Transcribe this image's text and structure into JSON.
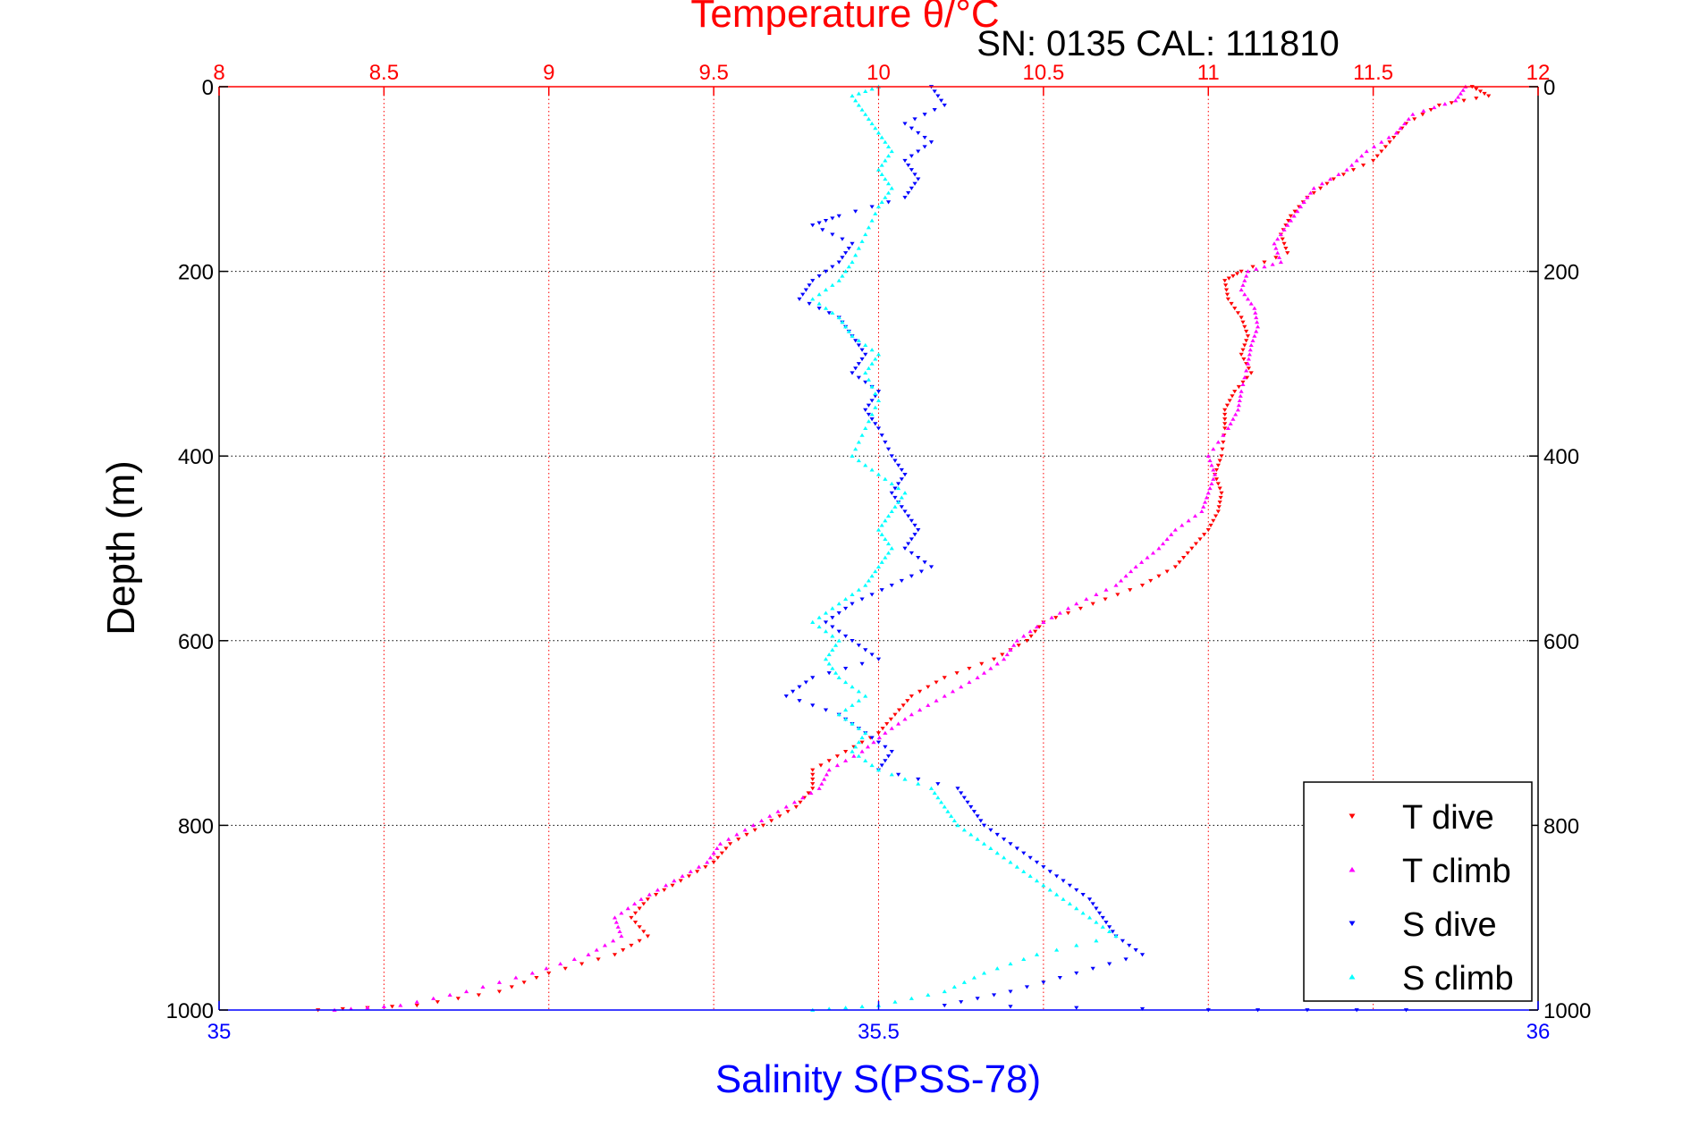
{
  "chart_data": {
    "type": "scatter",
    "title_top": "Temperature θ/°C",
    "annotation": "SN: 0135  CAL: 111810",
    "xlabel_bottom": "Salinity S(PSS-78)",
    "ylabel": "Depth (m)",
    "temperature_axis": {
      "lim": [
        8,
        12
      ],
      "ticks": [
        "8",
        "8.5",
        "9",
        "9.5",
        "10",
        "10.5",
        "11",
        "11.5",
        "12"
      ],
      "color": "#ff0000"
    },
    "salinity_axis": {
      "lim": [
        35,
        36
      ],
      "ticks": [
        "35",
        "35.5",
        "36"
      ],
      "color": "#0000ff"
    },
    "depth_axis": {
      "lim": [
        0,
        1000
      ],
      "reversed": true,
      "ticks": [
        "0",
        "200",
        "400",
        "600",
        "800",
        "1000"
      ]
    },
    "grid": true,
    "legend_position": "bottom-right",
    "series": [
      {
        "name": "T dive",
        "axis": "temperature",
        "color": "#ff0000",
        "marker": "triangle-down",
        "points": [
          [
            11.8,
            0
          ],
          [
            11.85,
            10
          ],
          [
            11.7,
            20
          ],
          [
            11.6,
            40
          ],
          [
            11.55,
            60
          ],
          [
            11.5,
            80
          ],
          [
            11.38,
            100
          ],
          [
            11.3,
            120
          ],
          [
            11.25,
            140
          ],
          [
            11.22,
            160
          ],
          [
            11.24,
            180
          ],
          [
            11.1,
            200
          ],
          [
            11.05,
            210
          ],
          [
            11.06,
            230
          ],
          [
            11.1,
            250
          ],
          [
            11.12,
            270
          ],
          [
            11.1,
            290
          ],
          [
            11.13,
            310
          ],
          [
            11.08,
            330
          ],
          [
            11.05,
            350
          ],
          [
            11.05,
            370
          ],
          [
            11.04,
            400
          ],
          [
            11.02,
            420
          ],
          [
            11.04,
            440
          ],
          [
            11.03,
            460
          ],
          [
            11.0,
            480
          ],
          [
            10.95,
            500
          ],
          [
            10.9,
            520
          ],
          [
            10.8,
            540
          ],
          [
            10.65,
            560
          ],
          [
            10.5,
            580
          ],
          [
            10.45,
            600
          ],
          [
            10.35,
            620
          ],
          [
            10.2,
            640
          ],
          [
            10.1,
            660
          ],
          [
            10.05,
            680
          ],
          [
            10.0,
            700
          ],
          [
            9.9,
            720
          ],
          [
            9.8,
            740
          ],
          [
            9.8,
            760
          ],
          [
            9.75,
            780
          ],
          [
            9.65,
            800
          ],
          [
            9.55,
            820
          ],
          [
            9.5,
            840
          ],
          [
            9.4,
            860
          ],
          [
            9.3,
            880
          ],
          [
            9.25,
            900
          ],
          [
            9.3,
            920
          ],
          [
            9.2,
            940
          ],
          [
            9.0,
            960
          ],
          [
            8.85,
            980
          ],
          [
            8.6,
            995
          ],
          [
            8.3,
            1000
          ]
        ]
      },
      {
        "name": "T climb",
        "axis": "temperature",
        "color": "#ff00ff",
        "marker": "triangle-up",
        "points": [
          [
            11.78,
            0
          ],
          [
            11.75,
            15
          ],
          [
            11.62,
            30
          ],
          [
            11.57,
            50
          ],
          [
            11.48,
            70
          ],
          [
            11.42,
            90
          ],
          [
            11.32,
            110
          ],
          [
            11.28,
            130
          ],
          [
            11.24,
            150
          ],
          [
            11.2,
            170
          ],
          [
            11.22,
            190
          ],
          [
            11.12,
            200
          ],
          [
            11.1,
            220
          ],
          [
            11.14,
            240
          ],
          [
            11.15,
            260
          ],
          [
            11.13,
            280
          ],
          [
            11.12,
            300
          ],
          [
            11.1,
            330
          ],
          [
            11.09,
            350
          ],
          [
            11.06,
            370
          ],
          [
            11.0,
            400
          ],
          [
            11.02,
            420
          ],
          [
            11.0,
            440
          ],
          [
            10.98,
            460
          ],
          [
            10.9,
            480
          ],
          [
            10.85,
            500
          ],
          [
            10.78,
            520
          ],
          [
            10.72,
            540
          ],
          [
            10.6,
            560
          ],
          [
            10.5,
            580
          ],
          [
            10.42,
            600
          ],
          [
            10.38,
            620
          ],
          [
            10.3,
            640
          ],
          [
            10.2,
            660
          ],
          [
            10.1,
            680
          ],
          [
            10.02,
            700
          ],
          [
            9.95,
            720
          ],
          [
            9.85,
            740
          ],
          [
            9.82,
            760
          ],
          [
            9.72,
            780
          ],
          [
            9.62,
            800
          ],
          [
            9.52,
            820
          ],
          [
            9.48,
            840
          ],
          [
            9.38,
            860
          ],
          [
            9.28,
            880
          ],
          [
            9.2,
            900
          ],
          [
            9.22,
            920
          ],
          [
            9.12,
            940
          ],
          [
            8.95,
            960
          ],
          [
            8.75,
            980
          ],
          [
            8.55,
            995
          ],
          [
            8.35,
            1000
          ]
        ]
      },
      {
        "name": "S dive",
        "axis": "salinity",
        "color": "#0000ff",
        "marker": "triangle-down",
        "points": [
          [
            35.54,
            0
          ],
          [
            35.55,
            20
          ],
          [
            35.52,
            40
          ],
          [
            35.54,
            60
          ],
          [
            35.52,
            80
          ],
          [
            35.53,
            100
          ],
          [
            35.52,
            120
          ],
          [
            35.47,
            140
          ],
          [
            35.45,
            150
          ],
          [
            35.48,
            170
          ],
          [
            35.47,
            190
          ],
          [
            35.45,
            210
          ],
          [
            35.44,
            230
          ],
          [
            35.47,
            250
          ],
          [
            35.48,
            270
          ],
          [
            35.49,
            290
          ],
          [
            35.48,
            310
          ],
          [
            35.5,
            330
          ],
          [
            35.49,
            350
          ],
          [
            35.5,
            370
          ],
          [
            35.51,
            400
          ],
          [
            35.52,
            420
          ],
          [
            35.51,
            440
          ],
          [
            35.52,
            460
          ],
          [
            35.53,
            480
          ],
          [
            35.52,
            500
          ],
          [
            35.54,
            520
          ],
          [
            35.51,
            540
          ],
          [
            35.48,
            560
          ],
          [
            35.46,
            580
          ],
          [
            35.48,
            600
          ],
          [
            35.5,
            620
          ],
          [
            35.45,
            640
          ],
          [
            35.43,
            660
          ],
          [
            35.47,
            680
          ],
          [
            35.49,
            700
          ],
          [
            35.51,
            720
          ],
          [
            35.5,
            740
          ],
          [
            35.56,
            760
          ],
          [
            35.57,
            780
          ],
          [
            35.58,
            800
          ],
          [
            35.6,
            820
          ],
          [
            35.62,
            840
          ],
          [
            35.64,
            860
          ],
          [
            35.66,
            880
          ],
          [
            35.67,
            900
          ],
          [
            35.68,
            920
          ],
          [
            35.7,
            940
          ],
          [
            35.65,
            960
          ],
          [
            35.6,
            980
          ],
          [
            35.55,
            995
          ],
          [
            35.75,
            1000
          ],
          [
            35.9,
            1000
          ]
        ]
      },
      {
        "name": "S climb",
        "axis": "salinity",
        "color": "#00ffff",
        "marker": "triangle-up",
        "points": [
          [
            35.5,
            0
          ],
          [
            35.48,
            10
          ],
          [
            35.49,
            30
          ],
          [
            35.5,
            50
          ],
          [
            35.51,
            70
          ],
          [
            35.5,
            90
          ],
          [
            35.51,
            110
          ],
          [
            35.5,
            130
          ],
          [
            35.49,
            160
          ],
          [
            35.48,
            190
          ],
          [
            35.47,
            210
          ],
          [
            35.45,
            230
          ],
          [
            35.47,
            250
          ],
          [
            35.48,
            270
          ],
          [
            35.5,
            290
          ],
          [
            35.49,
            310
          ],
          [
            35.5,
            340
          ],
          [
            35.49,
            370
          ],
          [
            35.48,
            400
          ],
          [
            35.5,
            420
          ],
          [
            35.52,
            440
          ],
          [
            35.51,
            460
          ],
          [
            35.5,
            480
          ],
          [
            35.51,
            500
          ],
          [
            35.5,
            520
          ],
          [
            35.49,
            540
          ],
          [
            35.47,
            560
          ],
          [
            35.45,
            580
          ],
          [
            35.47,
            600
          ],
          [
            35.46,
            620
          ],
          [
            35.47,
            640
          ],
          [
            35.49,
            660
          ],
          [
            35.47,
            680
          ],
          [
            35.49,
            700
          ],
          [
            35.48,
            720
          ],
          [
            35.5,
            740
          ],
          [
            35.54,
            760
          ],
          [
            35.55,
            780
          ],
          [
            35.56,
            800
          ],
          [
            35.58,
            820
          ],
          [
            35.6,
            840
          ],
          [
            35.62,
            860
          ],
          [
            35.64,
            880
          ],
          [
            35.66,
            900
          ],
          [
            35.68,
            920
          ],
          [
            35.62,
            940
          ],
          [
            35.58,
            960
          ],
          [
            35.55,
            980
          ],
          [
            35.5,
            995
          ],
          [
            35.45,
            1000
          ]
        ]
      }
    ]
  }
}
